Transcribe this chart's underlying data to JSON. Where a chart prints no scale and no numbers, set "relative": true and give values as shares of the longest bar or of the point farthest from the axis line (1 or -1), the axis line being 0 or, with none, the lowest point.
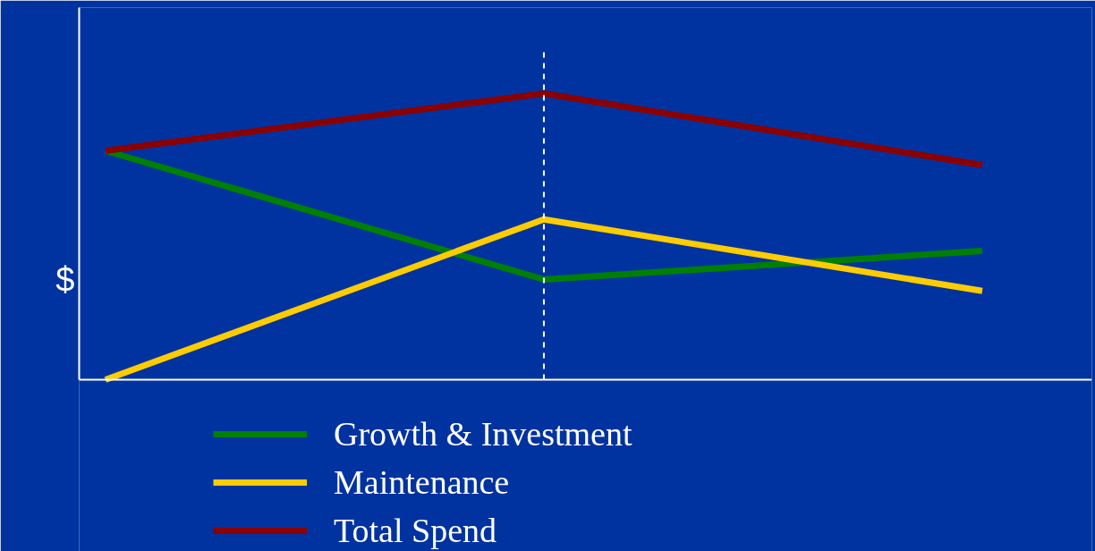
{
  "chart_data": {
    "type": "line",
    "relative": true,
    "ylabel": "$",
    "categories": [
      null,
      null,
      null
    ],
    "series": [
      {
        "name": "Growth & Investment",
        "color": "#008000",
        "values": [
          0.8,
          0.35,
          0.45
        ]
      },
      {
        "name": "Maintenance",
        "color": "#ffcc00",
        "values": [
          0,
          0.56,
          0.31
        ]
      },
      {
        "name": "Total Spend",
        "color": "#8b0000",
        "values": [
          0.8,
          1.0,
          0.75
        ]
      }
    ],
    "legend": "bottom",
    "marker": "none",
    "line_style": "solid"
  }
}
